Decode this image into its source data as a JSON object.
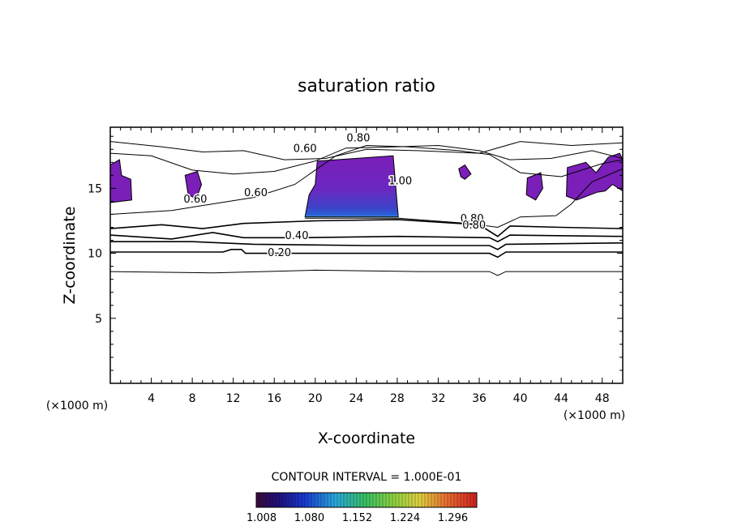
{
  "chart_data": {
    "type": "contour",
    "title": "saturation ratio",
    "xlabel": "X-coordinate",
    "ylabel": "Z-coordinate",
    "x_unit": "(×1000 m)",
    "y_unit": "(×1000 m)",
    "xlim": [
      0,
      50
    ],
    "ylim": [
      0,
      19.7
    ],
    "x_ticks": [
      4,
      8,
      12,
      16,
      20,
      24,
      28,
      32,
      36,
      40,
      44,
      48
    ],
    "y_ticks": [
      5,
      10,
      15
    ],
    "contour_interval_text": "CONTOUR INTERVAL = 1.000E-01",
    "contour_labels": [
      {
        "text": "0.20",
        "x": 16.5,
        "y": 9.8
      },
      {
        "text": "0.40",
        "x": 18.2,
        "y": 11.1
      },
      {
        "text": "0.60",
        "x": 8.3,
        "y": 13.9
      },
      {
        "text": "0.60",
        "x": 14.2,
        "y": 14.4
      },
      {
        "text": "0.60",
        "x": 19.0,
        "y": 17.8
      },
      {
        "text": "0.80",
        "x": 24.2,
        "y": 18.6
      },
      {
        "text": "0.80",
        "x": 35.3,
        "y": 12.4
      },
      {
        "text": "0.80",
        "x": 35.5,
        "y": 11.9
      },
      {
        "text": "1.00",
        "x": 28.3,
        "y": 15.3
      }
    ],
    "contour_lines": [
      {
        "level": 0.1,
        "points": [
          [
            0,
            8.6
          ],
          [
            10,
            8.5
          ],
          [
            20,
            8.7
          ],
          [
            30,
            8.6
          ],
          [
            37,
            8.6
          ],
          [
            37.8,
            8.3
          ],
          [
            38.6,
            8.6
          ],
          [
            50,
            8.6
          ]
        ]
      },
      {
        "level": 0.2,
        "points": [
          [
            0,
            10.1
          ],
          [
            11,
            10.1
          ],
          [
            11.8,
            10.3
          ],
          [
            12.8,
            10.3
          ],
          [
            13.2,
            10.0
          ],
          [
            30,
            10.0
          ],
          [
            37,
            10.0
          ],
          [
            37.8,
            9.7
          ],
          [
            38.6,
            10.1
          ],
          [
            50,
            10.1
          ]
        ]
      },
      {
        "level": 0.3,
        "points": [
          [
            0,
            10.9
          ],
          [
            8,
            10.9
          ],
          [
            14,
            10.7
          ],
          [
            25,
            10.6
          ],
          [
            37,
            10.6
          ],
          [
            37.8,
            10.3
          ],
          [
            38.6,
            10.7
          ],
          [
            50,
            10.8
          ]
        ]
      },
      {
        "level": 0.4,
        "points": [
          [
            0,
            11.4
          ],
          [
            6,
            11.1
          ],
          [
            10,
            11.6
          ],
          [
            13,
            11.2
          ],
          [
            19,
            11.2
          ],
          [
            28,
            11.3
          ],
          [
            37,
            11.2
          ],
          [
            37.8,
            10.9
          ],
          [
            39,
            11.4
          ],
          [
            50,
            11.3
          ]
        ]
      },
      {
        "level": 0.5,
        "points": [
          [
            0,
            11.9
          ],
          [
            5,
            12.2
          ],
          [
            9,
            11.9
          ],
          [
            13,
            12.3
          ],
          [
            20,
            12.5
          ],
          [
            28,
            12.6
          ],
          [
            36,
            12.2
          ],
          [
            37.8,
            11.3
          ],
          [
            39,
            12.1
          ],
          [
            44,
            12.0
          ],
          [
            50,
            11.9
          ]
        ]
      },
      {
        "level": 0.6,
        "points": [
          [
            0,
            13.0
          ],
          [
            6,
            13.3
          ],
          [
            10,
            13.8
          ],
          [
            14,
            14.3
          ],
          [
            18,
            15.3
          ],
          [
            22,
            17.5
          ],
          [
            25,
            18.3
          ],
          [
            29,
            18.2
          ],
          [
            34,
            17.9
          ],
          [
            37,
            17.6
          ],
          [
            40,
            16.2
          ],
          [
            44,
            15.9
          ],
          [
            48,
            16.9
          ],
          [
            50,
            17.2
          ]
        ]
      },
      {
        "level": 0.7,
        "points": [
          [
            0,
            18.6
          ],
          [
            5,
            18.2
          ],
          [
            9,
            17.8
          ],
          [
            13,
            17.9
          ],
          [
            17,
            17.2
          ],
          [
            21,
            17.3
          ],
          [
            25,
            18.0
          ],
          [
            30,
            17.9
          ],
          [
            36,
            17.7
          ],
          [
            40,
            18.6
          ],
          [
            45,
            18.3
          ],
          [
            50,
            18.5
          ]
        ]
      },
      {
        "level": 0.8,
        "points": [
          [
            0,
            17.7
          ],
          [
            4,
            17.5
          ],
          [
            8,
            16.4
          ],
          [
            12,
            16.1
          ],
          [
            16,
            16.3
          ],
          [
            20,
            17.1
          ],
          [
            23,
            18.1
          ],
          [
            28,
            18.2
          ],
          [
            32,
            18.3
          ],
          [
            36,
            17.9
          ],
          [
            39,
            17.2
          ],
          [
            43,
            17.3
          ],
          [
            47,
            17.9
          ],
          [
            50,
            17.3
          ]
        ]
      },
      {
        "level": 0.9,
        "points": [
          [
            19.0,
            12.7
          ],
          [
            28.1,
            12.7
          ],
          [
            35,
            12.3
          ],
          [
            37.8,
            12.0
          ],
          [
            40,
            12.8
          ],
          [
            43.5,
            12.9
          ],
          [
            45,
            13.8
          ],
          [
            47,
            15.5
          ],
          [
            50,
            16.5
          ]
        ]
      }
    ],
    "shaded_regions": [
      {
        "level": 1.1,
        "polygon": [
          [
            20.2,
            17.1
          ],
          [
            27.6,
            17.5
          ],
          [
            28.1,
            12.8
          ],
          [
            19.0,
            12.8
          ],
          [
            19.4,
            14.5
          ],
          [
            20.0,
            15.3
          ]
        ]
      },
      {
        "level": 1.0,
        "polygon": [
          [
            0.0,
            16.8
          ],
          [
            0.9,
            17.2
          ],
          [
            1.1,
            16.0
          ],
          [
            2.0,
            15.7
          ],
          [
            2.1,
            14.1
          ],
          [
            0.0,
            13.9
          ]
        ]
      },
      {
        "level": 1.0,
        "polygon": [
          [
            7.3,
            16.0
          ],
          [
            8.5,
            16.3
          ],
          [
            8.9,
            15.3
          ],
          [
            8.4,
            14.2
          ],
          [
            7.6,
            14.5
          ]
        ]
      },
      {
        "level": 1.0,
        "polygon": [
          [
            34.0,
            16.5
          ],
          [
            34.6,
            16.8
          ],
          [
            35.2,
            16.1
          ],
          [
            34.6,
            15.7
          ],
          [
            34.2,
            15.9
          ]
        ]
      },
      {
        "level": 1.0,
        "polygon": [
          [
            40.7,
            15.8
          ],
          [
            42.0,
            16.2
          ],
          [
            42.2,
            15.0
          ],
          [
            41.5,
            14.1
          ],
          [
            40.6,
            14.5
          ]
        ]
      },
      {
        "level": 1.0,
        "polygon": [
          [
            44.6,
            16.6
          ],
          [
            46.4,
            17.0
          ],
          [
            47.4,
            16.2
          ],
          [
            48.6,
            17.4
          ],
          [
            49.7,
            17.7
          ],
          [
            50.0,
            17.2
          ],
          [
            50.0,
            14.8
          ],
          [
            49.0,
            15.3
          ],
          [
            48.3,
            14.8
          ],
          [
            47.5,
            14.7
          ],
          [
            46.5,
            14.4
          ],
          [
            45.5,
            14.1
          ],
          [
            44.5,
            14.4
          ]
        ]
      }
    ],
    "colorbar": {
      "tick_labels": [
        "1.008",
        "1.080",
        "1.152",
        "1.224",
        "1.296"
      ],
      "range": [
        1.0,
        1.332
      ]
    },
    "colors": {
      "shade_top": "#7a1fb8",
      "shade_mid": "#5b2cc8",
      "shade_bottom": "#2a55d0",
      "shade_edge": "#3aa0e0"
    }
  }
}
